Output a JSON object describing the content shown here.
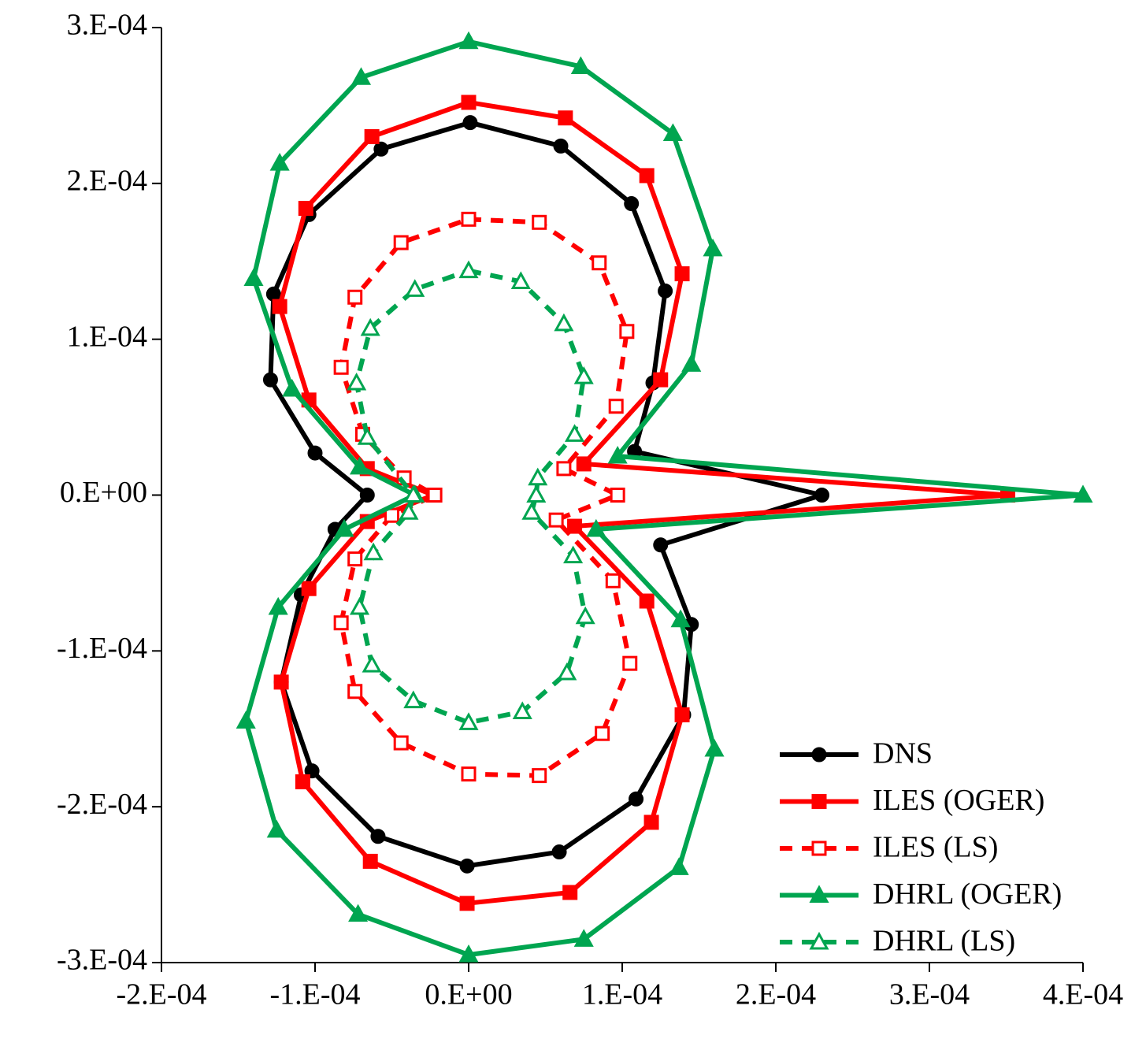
{
  "chart_data": {
    "type": "line",
    "xlim": [
      -0.0002,
      0.0004
    ],
    "ylim": [
      -0.0003,
      0.0003
    ],
    "xticks": [
      {
        "value": -0.0002,
        "label": "-2.E-04"
      },
      {
        "value": -0.0001,
        "label": "-1.E-04"
      },
      {
        "value": 0,
        "label": "0.E+00"
      },
      {
        "value": 0.0001,
        "label": "1.E-04"
      },
      {
        "value": 0.0002,
        "label": "2.E-04"
      },
      {
        "value": 0.0003,
        "label": "3.E-04"
      },
      {
        "value": 0.0004,
        "label": "4.E-04"
      }
    ],
    "yticks": [
      {
        "value": -0.0003,
        "label": "-3.E-04"
      },
      {
        "value": -0.0002,
        "label": "-2.E-04"
      },
      {
        "value": -0.0001,
        "label": "-1.E-04"
      },
      {
        "value": 0,
        "label": "0.E+00"
      },
      {
        "value": 0.0001,
        "label": "1.E-04"
      },
      {
        "value": 0.0002,
        "label": "2.E-04"
      },
      {
        "value": 0.0003,
        "label": "3.E-04"
      }
    ],
    "legend": "lower right",
    "series": [
      {
        "name": "DNS",
        "color": "#000000",
        "marker": "circle",
        "filled": true,
        "dashed": false,
        "x": [
          1e-06,
          6e-05,
          0.000106,
          0.000128,
          0.00012,
          0.000108,
          0.00023,
          0.000125,
          0.000145,
          0.00014,
          0.000109,
          5.9e-05,
          -1e-06,
          -5.9e-05,
          -0.000102,
          -0.000122,
          -0.000109,
          -8.7e-05,
          -6.6e-05,
          -0.0001,
          -0.000129,
          -0.000127,
          -0.000104,
          -5.7e-05
        ],
        "values": [
          0.000239,
          0.000224,
          0.000187,
          0.000131,
          7.2e-05,
          2.8e-05,
          0,
          -3.2e-05,
          -8.3e-05,
          -0.000141,
          -0.000195,
          -0.000229,
          -0.000238,
          -0.000219,
          -0.000177,
          -0.00012,
          -6.4e-05,
          -2.2e-05,
          0,
          2.7e-05,
          7.4e-05,
          0.000129,
          0.00018,
          0.000222
        ]
      },
      {
        "name": "ILES (OGER)",
        "color": "#ff0000",
        "marker": "square",
        "filled": true,
        "dashed": false,
        "x": [
          0.0,
          6.3e-05,
          0.000116,
          0.000139,
          0.000125,
          7.5e-05,
          0.000351,
          6.9e-05,
          0.000116,
          0.000139,
          0.000119,
          6.6e-05,
          -1e-06,
          -6.4e-05,
          -0.000108,
          -0.000122,
          -0.000104,
          -6.6e-05,
          -2.3e-05,
          -6.6e-05,
          -0.000104,
          -0.000123,
          -0.000106,
          -6.3e-05
        ],
        "values": [
          0.000252,
          0.000242,
          0.000205,
          0.000142,
          7.4e-05,
          2e-05,
          0,
          -2e-05,
          -6.8e-05,
          -0.000141,
          -0.00021,
          -0.000255,
          -0.000262,
          -0.000235,
          -0.000184,
          -0.00012,
          -6e-05,
          -1.7e-05,
          0,
          1.7e-05,
          6.1e-05,
          0.000121,
          0.000184,
          0.00023
        ]
      },
      {
        "name": "ILES (LS)",
        "color": "#ff0000",
        "marker": "square",
        "filled": false,
        "dashed": true,
        "x": [
          0.0,
          4.6e-05,
          8.5e-05,
          0.000103,
          9.6e-05,
          6.2e-05,
          9.7e-05,
          5.7e-05,
          9.4e-05,
          0.000105,
          8.7e-05,
          4.6e-05,
          0.0,
          -4.4e-05,
          -7.4e-05,
          -8.3e-05,
          -7.4e-05,
          -5e-05,
          -2.2e-05,
          -4.2e-05,
          -6.9e-05,
          -8.3e-05,
          -7.4e-05,
          -4.4e-05
        ],
        "values": [
          0.000177,
          0.000175,
          0.000149,
          0.000105,
          5.7e-05,
          1.7e-05,
          0,
          -1.6e-05,
          -5.5e-05,
          -0.000108,
          -0.000153,
          -0.00018,
          -0.000179,
          -0.000159,
          -0.000126,
          -8.2e-05,
          -4.1e-05,
          -1.3e-05,
          0,
          1.1e-05,
          3.9e-05,
          8.2e-05,
          0.000127,
          0.000162
        ]
      },
      {
        "name": "DHRL (OGER)",
        "color": "#00a550",
        "marker": "triangle",
        "filled": true,
        "dashed": false,
        "x": [
          0.0,
          7.3e-05,
          0.000133,
          0.000159,
          0.000145,
          9.7e-05,
          0.0004,
          8.3e-05,
          0.000138,
          0.00016,
          0.000137,
          7.5e-05,
          0.0,
          -7.2e-05,
          -0.000125,
          -0.000145,
          -0.000124,
          -8.1e-05,
          -3.5e-05,
          -7.1e-05,
          -0.000115,
          -0.00014,
          -0.000123,
          -7e-05
        ],
        "values": [
          0.000291,
          0.000275,
          0.000232,
          0.000158,
          8.4e-05,
          2.5e-05,
          0,
          -2.2e-05,
          -8e-05,
          -0.000163,
          -0.000239,
          -0.000285,
          -0.000295,
          -0.000269,
          -0.000215,
          -0.000145,
          -7.2e-05,
          -2.2e-05,
          0,
          1.8e-05,
          6.8e-05,
          0.000139,
          0.000213,
          0.000268
        ]
      },
      {
        "name": "DHRL (LS)",
        "color": "#00a550",
        "marker": "triangle",
        "filled": false,
        "dashed": true,
        "x": [
          0.0,
          3.4e-05,
          6.2e-05,
          7.5e-05,
          6.9e-05,
          4.5e-05,
          4.4e-05,
          4.1e-05,
          6.8e-05,
          7.6e-05,
          6.4e-05,
          3.5e-05,
          0.0,
          -3.6e-05,
          -6.3e-05,
          -7.1e-05,
          -6.2e-05,
          -3.9e-05,
          -3.6e-05,
          -6.6e-05,
          -7.3e-05,
          -6.4e-05,
          -3.5e-05
        ],
        "values": [
          0.000144,
          0.000137,
          0.00011,
          7.6e-05,
          3.9e-05,
          1.1e-05,
          0,
          -1.1e-05,
          -3.9e-05,
          -7.8e-05,
          -0.000114,
          -0.000139,
          -0.000146,
          -0.000132,
          -0.000109,
          -7.2e-05,
          -3.7e-05,
          -1.1e-05,
          0,
          3.7e-05,
          7.2e-05,
          0.000107,
          0.000132
        ]
      }
    ]
  }
}
